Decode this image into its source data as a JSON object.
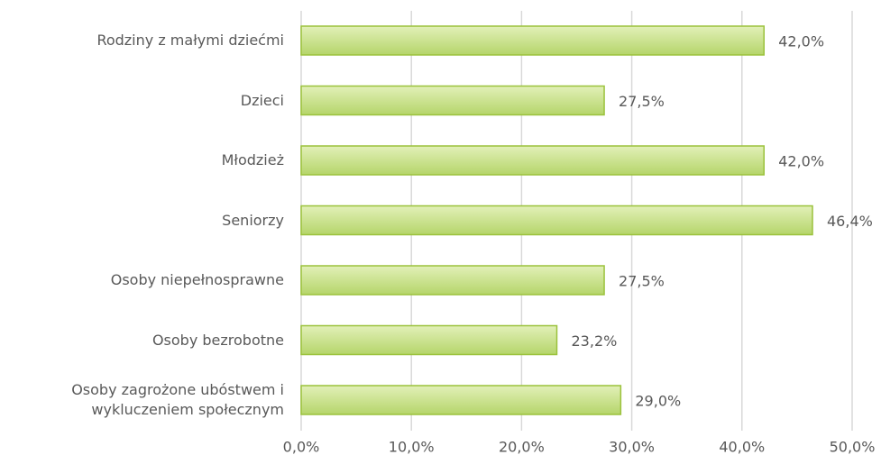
{
  "chart_data": {
    "type": "bar",
    "orientation": "horizontal",
    "categories": [
      "Rodziny z małymi dziećmi",
      "Dzieci",
      "Młodzież",
      "Seniorzy",
      "Osoby niepełnosprawne",
      "Osoby bezrobotne",
      "Osoby zagrożone ubóstwem i\nwykluczeniem społecznym"
    ],
    "values": [
      42.0,
      27.5,
      42.0,
      46.4,
      27.5,
      23.2,
      29.0
    ],
    "value_labels": [
      "42,0%",
      "27,5%",
      "42,0%",
      "46,4%",
      "27,5%",
      "23,2%",
      "29,0%"
    ],
    "color": "#b5d56a",
    "xlim": [
      0,
      50
    ],
    "xticks": [
      {
        "value": 0,
        "label": "0,0%"
      },
      {
        "value": 10,
        "label": "10,0%"
      },
      {
        "value": 20,
        "label": "20,0%"
      },
      {
        "value": 30,
        "label": "30,0%"
      },
      {
        "value": 40,
        "label": "40,0%"
      },
      {
        "value": 50,
        "label": "50,0%"
      }
    ],
    "grid": true
  }
}
